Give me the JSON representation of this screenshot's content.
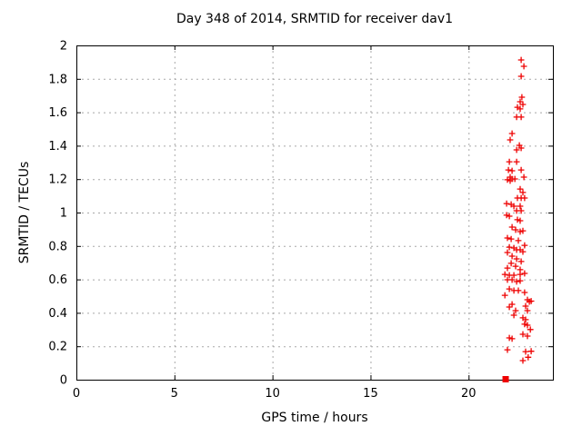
{
  "page": {
    "background_color": "#ffffff",
    "text_color": "#000000"
  },
  "chart_data": {
    "type": "scatter",
    "title": "Day 348 of 2014, SRMTID for receiver dav1",
    "xlabel": "GPS time / hours",
    "ylabel": "SRMTID / TECUs",
    "xlim": [
      0,
      24.3
    ],
    "ylim": [
      0,
      2
    ],
    "xtick_values": [
      0,
      5,
      10,
      15,
      20
    ],
    "xtick_labels": [
      "0",
      "5",
      "10",
      "15",
      "20"
    ],
    "ytick_values": [
      0,
      0.2,
      0.4,
      0.6,
      0.8,
      1,
      1.2,
      1.4,
      1.6,
      1.8,
      2
    ],
    "ytick_labels": [
      "0",
      "0.2",
      "0.4",
      "0.6",
      "0.8",
      "1",
      "1.2",
      "1.4",
      "1.6",
      "1.8",
      "2"
    ],
    "grid": true,
    "grid_color": "#a8a8a8",
    "border_color": "#000000",
    "legend": "off",
    "marker": "plus",
    "marker_color": "#ee0000",
    "series": [
      {
        "name": "SRMTID",
        "points": [
          [
            22.68,
            1.913
          ],
          [
            22.82,
            1.875
          ],
          [
            22.68,
            1.815
          ],
          [
            22.72,
            1.69
          ],
          [
            22.63,
            1.663
          ],
          [
            22.77,
            1.647
          ],
          [
            22.49,
            1.63
          ],
          [
            22.63,
            1.62
          ],
          [
            22.45,
            1.571
          ],
          [
            22.68,
            1.571
          ],
          [
            22.22,
            1.473
          ],
          [
            22.12,
            1.435
          ],
          [
            22.59,
            1.402
          ],
          [
            22.68,
            1.386
          ],
          [
            22.45,
            1.375
          ],
          [
            22.08,
            1.304
          ],
          [
            22.45,
            1.304
          ],
          [
            22.03,
            1.255
          ],
          [
            22.68,
            1.255
          ],
          [
            22.22,
            1.25
          ],
          [
            22.12,
            1.212
          ],
          [
            22.82,
            1.212
          ],
          [
            22.22,
            1.201
          ],
          [
            22.36,
            1.201
          ],
          [
            21.98,
            1.196
          ],
          [
            22.12,
            1.19
          ],
          [
            22.63,
            1.141
          ],
          [
            22.77,
            1.12
          ],
          [
            22.49,
            1.087
          ],
          [
            22.68,
            1.087
          ],
          [
            22.86,
            1.087
          ],
          [
            21.94,
            1.054
          ],
          [
            22.17,
            1.049
          ],
          [
            22.31,
            1.038
          ],
          [
            22.63,
            1.038
          ],
          [
            22.45,
            1.011
          ],
          [
            22.68,
            1.011
          ],
          [
            21.94,
            0.984
          ],
          [
            22.08,
            0.978
          ],
          [
            22.49,
            0.957
          ],
          [
            22.63,
            0.951
          ],
          [
            22.22,
            0.913
          ],
          [
            22.4,
            0.897
          ],
          [
            22.77,
            0.891
          ],
          [
            22.63,
            0.886
          ],
          [
            21.98,
            0.848
          ],
          [
            22.17,
            0.842
          ],
          [
            22.54,
            0.832
          ],
          [
            22.86,
            0.804
          ],
          [
            22.08,
            0.793
          ],
          [
            22.31,
            0.788
          ],
          [
            22.45,
            0.777
          ],
          [
            22.63,
            0.777
          ],
          [
            22.77,
            0.766
          ],
          [
            21.98,
            0.761
          ],
          [
            22.22,
            0.739
          ],
          [
            22.45,
            0.723
          ],
          [
            22.68,
            0.707
          ],
          [
            22.17,
            0.696
          ],
          [
            22.4,
            0.679
          ],
          [
            21.98,
            0.668
          ],
          [
            22.63,
            0.658
          ],
          [
            21.85,
            0.63
          ],
          [
            22.63,
            0.63
          ],
          [
            22.86,
            0.636
          ],
          [
            22.08,
            0.625
          ],
          [
            22.31,
            0.625
          ],
          [
            21.98,
            0.598
          ],
          [
            22.22,
            0.598
          ],
          [
            22.63,
            0.592
          ],
          [
            22.45,
            0.587
          ],
          [
            22.08,
            0.543
          ],
          [
            22.31,
            0.533
          ],
          [
            22.54,
            0.533
          ],
          [
            22.86,
            0.522
          ],
          [
            21.85,
            0.505
          ],
          [
            23.0,
            0.478
          ],
          [
            23.19,
            0.47
          ],
          [
            23.1,
            0.467
          ],
          [
            22.22,
            0.451
          ],
          [
            22.91,
            0.44
          ],
          [
            22.08,
            0.435
          ],
          [
            22.4,
            0.413
          ],
          [
            23.0,
            0.413
          ],
          [
            22.31,
            0.386
          ],
          [
            22.77,
            0.37
          ],
          [
            22.91,
            0.359
          ],
          [
            22.86,
            0.332
          ],
          [
            23.0,
            0.326
          ],
          [
            23.15,
            0.3
          ],
          [
            22.77,
            0.272
          ],
          [
            23.0,
            0.261
          ],
          [
            22.08,
            0.25
          ],
          [
            22.22,
            0.245
          ],
          [
            21.98,
            0.179
          ],
          [
            23.19,
            0.17
          ],
          [
            22.91,
            0.168
          ],
          [
            23.04,
            0.134
          ],
          [
            22.77,
            0.114
          ]
        ]
      }
    ],
    "zero_marker": {
      "x": 21.89,
      "y": 0,
      "shape": "filled-square"
    }
  }
}
